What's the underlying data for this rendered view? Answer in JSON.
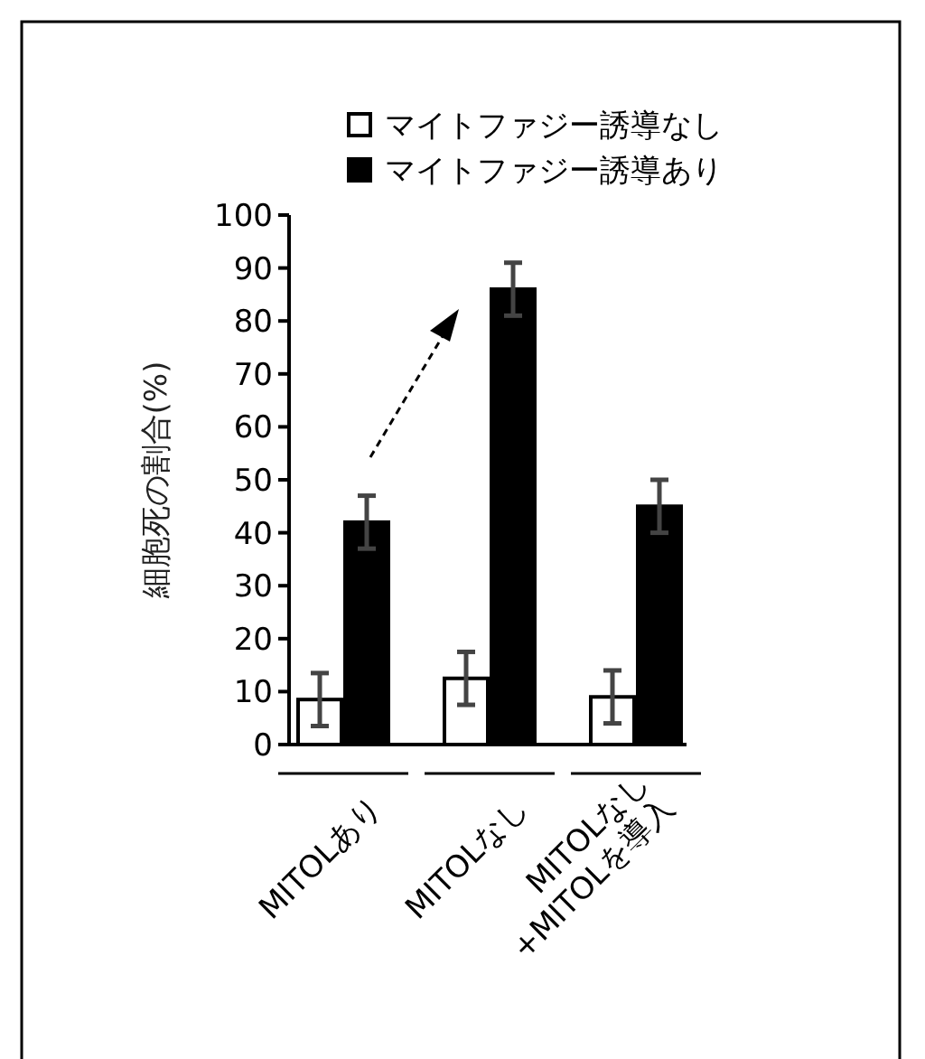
{
  "chart_data": {
    "type": "bar",
    "ylabel": "細胞死の割合(%)",
    "categories": [
      "MITOLあり",
      "MITOLなし",
      "MITOLなし\n+MITOLを導入"
    ],
    "series": [
      {
        "name": "マイトファジー誘導なし",
        "color": "#ffffff",
        "values": [
          8.5,
          12.5,
          9
        ],
        "errors": [
          5,
          5,
          5
        ]
      },
      {
        "name": "マイトファジー誘導あり",
        "color": "#000000",
        "values": [
          42,
          86,
          45
        ],
        "errors": [
          5,
          5,
          5
        ]
      }
    ],
    "ylim": [
      0,
      100
    ],
    "yticks": [
      0,
      10,
      20,
      30,
      40,
      50,
      60,
      70,
      80,
      90,
      100
    ],
    "legend": "top",
    "grid": false
  }
}
